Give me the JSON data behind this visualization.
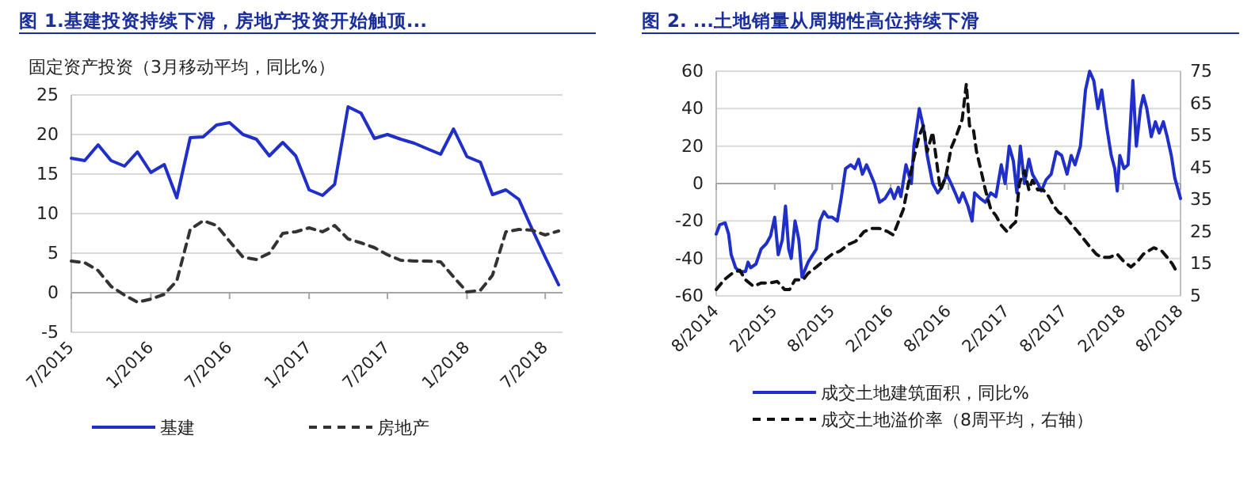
{
  "chart_data": [
    {
      "type": "line",
      "title": "图 1.基建投资持续下滑，房地产投资开始触顶...",
      "ylabel": "固定资产投资（3月移动平均，同比%）",
      "x": [
        "2015-07",
        "2015-08",
        "2015-09",
        "2015-10",
        "2015-11",
        "2015-12",
        "2016-01",
        "2016-02",
        "2016-03",
        "2016-04",
        "2016-05",
        "2016-06",
        "2016-07",
        "2016-08",
        "2016-09",
        "2016-10",
        "2016-11",
        "2016-12",
        "2017-01",
        "2017-02",
        "2017-03",
        "2017-04",
        "2017-05",
        "2017-06",
        "2017-07",
        "2017-08",
        "2017-09",
        "2017-10",
        "2017-11",
        "2017-12",
        "2018-01",
        "2018-02",
        "2018-03",
        "2018-04",
        "2018-05",
        "2018-06",
        "2018-07",
        "2018-08"
      ],
      "series": [
        {
          "name": "基建",
          "color": "#1f2fc8",
          "line_style": "solid",
          "values": [
            17,
            16.7,
            18.7,
            16.7,
            16,
            17.8,
            15.2,
            16.2,
            12,
            19.6,
            19.7,
            21.2,
            21.5,
            20,
            19.4,
            17.3,
            19,
            17.3,
            13,
            12.3,
            13.7,
            23.5,
            22.7,
            19.5,
            20,
            19.4,
            18.9,
            18.2,
            17.5,
            20.7,
            17.2,
            16.5,
            12.4,
            13,
            11.8,
            8,
            4.5,
            1
          ]
        },
        {
          "name": "房地产",
          "color": "#333333",
          "line_style": "dashed",
          "values": [
            4,
            3.8,
            2.8,
            0.8,
            -0.3,
            -1.2,
            -0.8,
            -0.2,
            1.5,
            8,
            9.1,
            8.5,
            6.5,
            4.5,
            4.2,
            5,
            7.5,
            7.7,
            8.2,
            7.7,
            8.5,
            6.8,
            6.3,
            5.7,
            4.8,
            4.1,
            4,
            4,
            3.9,
            2,
            0.1,
            0.3,
            2.2,
            7.7,
            8,
            7.9,
            7.3,
            7.8
          ]
        }
      ],
      "xlim": [
        "2015-07",
        "2018-08-10"
      ],
      "xticks": [
        {
          "value": "2015-07",
          "label": "7/2015"
        },
        {
          "value": "2016-01",
          "label": "1/2016"
        },
        {
          "value": "2016-07",
          "label": "7/2016"
        },
        {
          "value": "2017-01",
          "label": "1/2017"
        },
        {
          "value": "2017-07",
          "label": "7/2017"
        },
        {
          "value": "2018-01",
          "label": "1/2018"
        },
        {
          "value": "2018-07",
          "label": "7/2018"
        }
      ],
      "ylim": [
        -5,
        25
      ],
      "yticks": [
        -5,
        0,
        5,
        10,
        15,
        20,
        25
      ],
      "grid": "y",
      "legend": "bottom"
    },
    {
      "type": "line",
      "title": "图 2. ...土地销量从周期性高位持续下滑",
      "series": [
        {
          "name": "成交土地建筑面积，同比%",
          "color": "#1f2fc8",
          "line_style": "solid",
          "axis": "y",
          "x": [
            "2014-08-01",
            "2014-08-12",
            "2014-08-29",
            "2014-09-09",
            "2014-09-17",
            "2014-10-01",
            "2014-10-14",
            "2014-11-01",
            "2014-11-09",
            "2014-11-17",
            "2014-12-04",
            "2014-12-20",
            "2015-01-06",
            "2015-01-19",
            "2015-02-01",
            "2015-02-12",
            "2015-02-25",
            "2015-03-07",
            "2015-03-17",
            "2015-03-25",
            "2015-04-06",
            "2015-04-18",
            "2015-04-28",
            "2015-05-17",
            "2015-06-12",
            "2015-06-23",
            "2015-07-06",
            "2015-07-19",
            "2015-08-01",
            "2015-08-17",
            "2015-08-29",
            "2015-09-12",
            "2015-09-28",
            "2015-10-11",
            "2015-10-23",
            "2015-11-04",
            "2015-11-17",
            "2015-11-25",
            "2015-12-12",
            "2015-12-28",
            "2016-01-14",
            "2016-02-01",
            "2016-02-12",
            "2016-02-25",
            "2016-03-04",
            "2016-03-20",
            "2016-04-06",
            "2016-04-14",
            "2016-05-01",
            "2016-05-14",
            "2016-05-26",
            "2016-06-12",
            "2016-06-28",
            "2016-07-11",
            "2016-07-26",
            "2016-08-09",
            "2016-08-22",
            "2016-09-03",
            "2016-09-15",
            "2016-10-01",
            "2016-10-14",
            "2016-10-22",
            "2016-11-09",
            "2016-11-25",
            "2016-12-12",
            "2016-12-28",
            "2017-01-14",
            "2017-01-26",
            "2017-02-08",
            "2017-02-21",
            "2017-03-04",
            "2017-03-15",
            "2017-03-28",
            "2017-04-11",
            "2017-04-22",
            "2017-05-09",
            "2017-05-20",
            "2017-06-04",
            "2017-06-20",
            "2017-07-06",
            "2017-07-23",
            "2017-08-09",
            "2017-08-22",
            "2017-09-03",
            "2017-09-20",
            "2017-10-06",
            "2017-10-19",
            "2017-11-01",
            "2017-11-14",
            "2017-11-26",
            "2017-12-12",
            "2017-12-26",
            "2018-01-06",
            "2018-01-14",
            "2018-01-22",
            "2018-02-04",
            "2018-02-17",
            "2018-03-04",
            "2018-03-15",
            "2018-03-28",
            "2018-04-06",
            "2018-04-17",
            "2018-05-01",
            "2018-05-14",
            "2018-05-26",
            "2018-06-08",
            "2018-06-20",
            "2018-07-03",
            "2018-07-14",
            "2018-08-01"
          ],
          "values": [
            -27,
            -22,
            -21,
            -27,
            -38,
            -45,
            -47,
            -47,
            -42,
            -45,
            -43,
            -35,
            -32,
            -28,
            -18,
            -38,
            -30,
            -12,
            -35,
            -40,
            -20,
            -30,
            -50,
            -42,
            -35,
            -20,
            -15,
            -18,
            -18,
            -20,
            -8,
            8,
            10,
            8,
            13,
            5,
            10,
            7,
            0,
            -10,
            -8,
            -3,
            -8,
            -2,
            -7,
            10,
            0,
            20,
            40,
            30,
            15,
            0,
            -5,
            -2,
            5,
            0,
            -5,
            -10,
            -5,
            -12,
            -20,
            -5,
            -8,
            -10,
            -5,
            -7,
            10,
            0,
            20,
            12,
            -5,
            20,
            0,
            13,
            5,
            0,
            -4,
            2,
            5,
            17,
            15,
            5,
            15,
            10,
            20,
            50,
            60,
            55,
            40,
            50,
            30,
            15,
            8,
            -4,
            15,
            8,
            10,
            55,
            20,
            40,
            47,
            40,
            25,
            33,
            27,
            33,
            25,
            15,
            3,
            -8
          ]
        },
        {
          "name": "成交土地溢价率（8周平均，右轴）",
          "color": "#111111",
          "line_style": "dashed",
          "axis": "y2",
          "x": [
            "2014-08-01",
            "2014-08-26",
            "2014-09-20",
            "2014-10-14",
            "2014-11-01",
            "2014-11-26",
            "2014-12-20",
            "2015-01-15",
            "2015-02-09",
            "2015-03-04",
            "2015-03-20",
            "2015-04-06",
            "2015-05-01",
            "2015-05-17",
            "2015-06-12",
            "2015-07-06",
            "2015-08-01",
            "2015-08-26",
            "2015-09-20",
            "2015-10-14",
            "2015-11-09",
            "2015-12-04",
            "2015-12-28",
            "2016-01-23",
            "2016-02-09",
            "2016-02-25",
            "2016-03-12",
            "2016-03-28",
            "2016-04-14",
            "2016-05-01",
            "2016-05-14",
            "2016-05-26",
            "2016-06-12",
            "2016-06-23",
            "2016-07-06",
            "2016-07-23",
            "2016-08-09",
            "2016-08-26",
            "2016-09-13",
            "2016-09-26",
            "2016-10-06",
            "2016-10-18",
            "2016-10-28",
            "2016-11-09",
            "2016-11-25",
            "2016-12-12",
            "2016-12-28",
            "2017-01-14",
            "2017-02-01",
            "2017-02-17",
            "2017-02-28",
            "2017-03-12",
            "2017-03-28",
            "2017-04-11",
            "2017-04-22",
            "2017-05-09",
            "2017-05-26",
            "2017-06-12",
            "2017-06-28",
            "2017-07-14",
            "2017-08-01",
            "2017-08-17",
            "2017-09-03",
            "2017-09-20",
            "2017-10-06",
            "2017-10-22",
            "2017-11-09",
            "2017-11-25",
            "2017-12-20",
            "2018-01-14",
            "2018-02-01",
            "2018-02-26",
            "2018-03-21",
            "2018-04-06",
            "2018-04-22",
            "2018-05-09",
            "2018-06-03",
            "2018-06-20",
            "2018-07-06",
            "2018-07-23"
          ],
          "values": [
            7,
            10,
            12,
            13,
            10,
            8,
            9,
            9,
            9.5,
            7,
            7,
            10,
            10,
            12,
            14,
            16,
            18,
            19,
            21,
            22,
            25,
            26,
            26,
            25,
            24,
            28,
            32,
            40,
            48,
            55,
            58,
            50,
            56,
            48,
            38,
            42,
            51,
            55,
            60,
            71,
            58,
            57,
            50,
            45,
            38,
            32,
            30,
            27,
            25,
            27,
            28,
            40,
            44,
            38,
            41,
            38,
            38,
            36,
            33,
            31,
            30,
            28,
            26,
            24,
            22,
            20,
            18,
            17,
            17,
            18,
            16,
            14,
            16,
            18,
            19,
            20,
            19,
            17,
            15,
            12
          ]
        }
      ],
      "xlim": [
        "2014-08-01",
        "2018-08-01"
      ],
      "xticks": [
        {
          "value": "2014-08",
          "label": "8/2014"
        },
        {
          "value": "2015-02",
          "label": "2/2015"
        },
        {
          "value": "2015-08",
          "label": "8/2015"
        },
        {
          "value": "2016-02",
          "label": "2/2016"
        },
        {
          "value": "2016-08",
          "label": "8/2016"
        },
        {
          "value": "2017-02",
          "label": "2/2017"
        },
        {
          "value": "2017-08",
          "label": "8/2017"
        },
        {
          "value": "2018-02",
          "label": "2/2018"
        },
        {
          "value": "2018-08",
          "label": "8/2018"
        }
      ],
      "ylim": [
        -60,
        60
      ],
      "yticks": [
        -60,
        -40,
        -20,
        0,
        20,
        40,
        60
      ],
      "y2lim": [
        5,
        75
      ],
      "y2ticks": [
        5,
        15,
        25,
        35,
        45,
        55,
        65,
        75
      ],
      "grid": "y",
      "legend": "bottom"
    }
  ]
}
